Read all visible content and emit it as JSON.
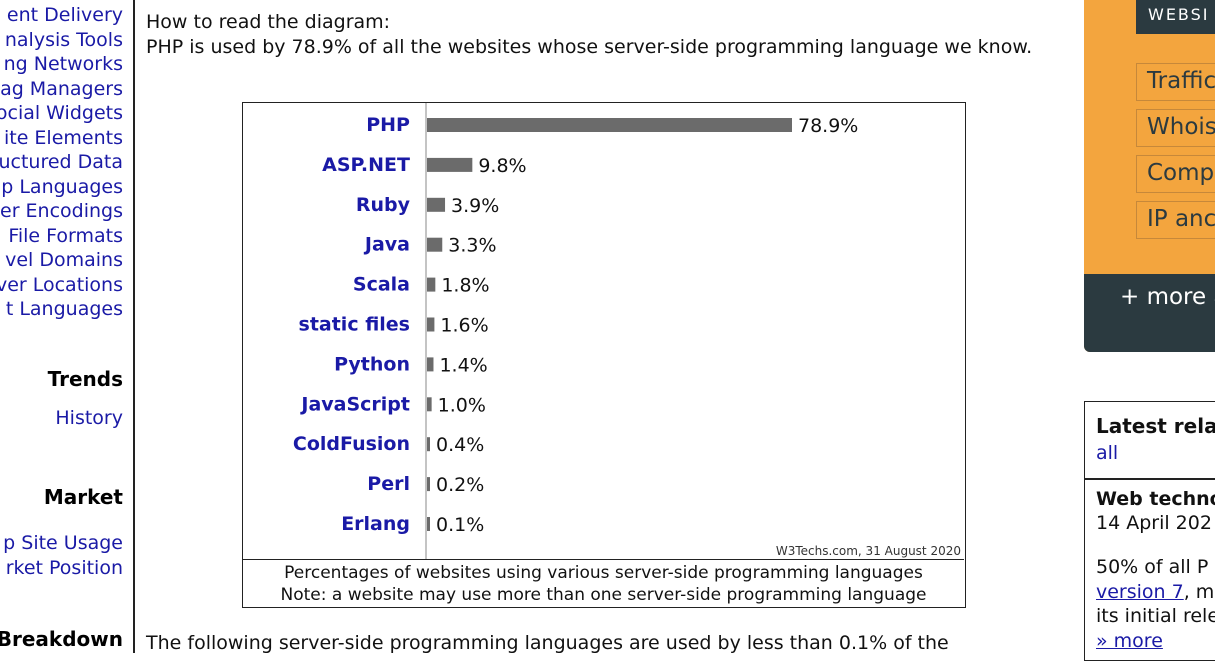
{
  "nav": {
    "items": [
      "ent Delivery",
      "nalysis Tools",
      "ng Networks",
      "ag Managers",
      "ocial Widgets",
      "ite Elements",
      "uctured Data",
      "p Languages",
      "er Encodings",
      "File Formats",
      "vel Domains",
      "ver Locations",
      "t Languages"
    ],
    "trends_title": "Trends",
    "trends_items": [
      "History"
    ],
    "market_title": "Market",
    "market_items": [
      "p Site Usage",
      "rket Position"
    ],
    "breakdown_title": "Breakdown"
  },
  "intro": {
    "heading": "How to read the diagram:",
    "text": "PHP is used by 78.9% of all the websites whose server-side programming language we know."
  },
  "chart_data": {
    "type": "bar",
    "orientation": "horizontal",
    "categories": [
      "PHP",
      "ASP.NET",
      "Ruby",
      "Java",
      "Scala",
      "static files",
      "Python",
      "JavaScript",
      "ColdFusion",
      "Perl",
      "Erlang"
    ],
    "values": [
      78.9,
      9.8,
      3.9,
      3.3,
      1.8,
      1.6,
      1.4,
      1.0,
      0.4,
      0.2,
      0.1
    ],
    "value_labels": [
      "78.9%",
      "9.8%",
      "3.9%",
      "3.3%",
      "1.8%",
      "1.6%",
      "1.4%",
      "1.0%",
      "0.4%",
      "0.2%",
      "0.1%"
    ],
    "source": "W3Techs.com, 31 August 2020",
    "caption_line1": "Percentages of websites using various server-side programming languages",
    "caption_line2": "Note: a website may use more than one server-side programming language",
    "bar_color": "#6b6b6b",
    "label_color": "#1a1aa6"
  },
  "bottom_text": "The following server-side programming languages are used by less than 0.1% of the",
  "sidebar": {
    "tab_label": "WEBSI",
    "items": [
      "Traffic",
      "Whois",
      "Comp",
      "IP anc"
    ],
    "more_label": "+ more a",
    "accent": "#f3a53e",
    "dark": "#2b3a40"
  },
  "latest": {
    "heading": "Latest rela",
    "all_link": "all",
    "news_title": "Web techno",
    "news_date": "14 April 202",
    "news_line1": "50% of all P",
    "news_link": "version 7",
    "news_line2_rest": ", m",
    "news_line3": "its initial rele",
    "more_link": "» more"
  }
}
